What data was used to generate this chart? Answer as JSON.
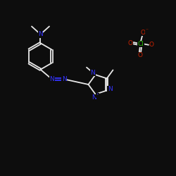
{
  "background_color": "#0d0d0d",
  "bond_color": "#e8e8e8",
  "n_color": "#3333ff",
  "o_color": "#cc2200",
  "cl_color": "#22bb00",
  "figsize": [
    2.5,
    2.5
  ],
  "dpi": 100,
  "xlim": [
    0,
    10
  ],
  "ylim": [
    0,
    10
  ]
}
